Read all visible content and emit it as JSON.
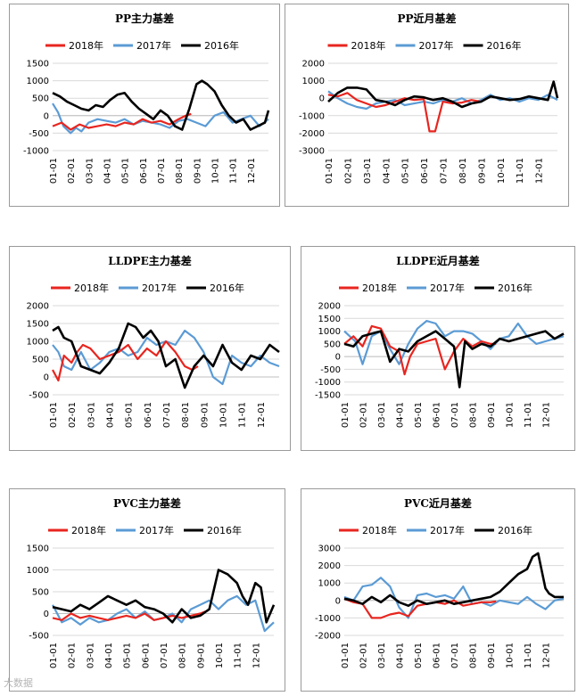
{
  "watermark": "大数据",
  "legend_years": [
    "2018年",
    "2017年",
    "2016年"
  ],
  "colors": {
    "2018": "#e8251f",
    "2017": "#5b9bd5",
    "2016": "#000000"
  },
  "x_categories": [
    "01-01",
    "02-01",
    "03-01",
    "04-01",
    "05-01",
    "06-01",
    "07-01",
    "08-01",
    "09-01",
    "10-01",
    "11-01",
    "12-01"
  ],
  "chart_data": [
    {
      "type": "line",
      "title": "PP主力基差",
      "ylim": [
        -1000,
        1500
      ],
      "yticks": [
        -1000,
        -500,
        0,
        500,
        1000,
        1500
      ],
      "categories": [
        "01-01",
        "02-01",
        "03-01",
        "04-01",
        "05-01",
        "06-01",
        "07-01",
        "08-01",
        "09-01",
        "10-01",
        "11-01",
        "12-01"
      ],
      "series": [
        {
          "name": "2018年",
          "x": [
            0,
            0.5,
            1,
            1.5,
            2,
            2.5,
            3,
            3.5,
            4,
            4.5,
            5,
            5.5,
            6,
            6.5,
            7,
            7.4,
            7.7
          ],
          "values": [
            -300,
            -200,
            -400,
            -250,
            -350,
            -300,
            -250,
            -300,
            -200,
            -250,
            -100,
            -200,
            -150,
            -250,
            -100,
            0,
            50
          ]
        },
        {
          "name": "2017年",
          "x": [
            0,
            0.3,
            0.6,
            1,
            1.3,
            1.6,
            2,
            2.5,
            3,
            3.5,
            4,
            4.5,
            5,
            5.5,
            6,
            6.5,
            7,
            7.5,
            8,
            8.5,
            9,
            9.5,
            10,
            10.5,
            11,
            11.5,
            12
          ],
          "values": [
            350,
            100,
            -300,
            -500,
            -350,
            -450,
            -200,
            -100,
            -150,
            -200,
            -100,
            -250,
            -150,
            -200,
            -250,
            -350,
            -150,
            -100,
            -200,
            -300,
            0,
            100,
            -200,
            -100,
            0,
            -300,
            -100
          ]
        },
        {
          "name": "2016年",
          "x": [
            0,
            0.4,
            0.8,
            1.2,
            1.6,
            2,
            2.4,
            2.8,
            3.2,
            3.6,
            4,
            4.4,
            4.8,
            5.2,
            5.6,
            6,
            6.4,
            6.8,
            7.2,
            7.6,
            8,
            8.3,
            8.6,
            9,
            9.4,
            9.8,
            10.2,
            10.6,
            11,
            11.4,
            11.8,
            12
          ],
          "values": [
            650,
            550,
            400,
            300,
            200,
            150,
            300,
            250,
            450,
            600,
            650,
            400,
            200,
            50,
            -100,
            150,
            0,
            -300,
            -400,
            200,
            900,
            1000,
            900,
            700,
            300,
            0,
            -200,
            -100,
            -400,
            -300,
            -200,
            150
          ]
        }
      ]
    },
    {
      "type": "line",
      "title": "PP近月基差",
      "ylim": [
        -3000,
        2000
      ],
      "yticks": [
        -3000,
        -2000,
        -1000,
        0,
        1000,
        2000
      ],
      "categories": [
        "01-01",
        "02-01",
        "03-01",
        "04-01",
        "05-01",
        "06-01",
        "07-01",
        "08-01",
        "09-01",
        "10-01",
        "11-01",
        "12-01"
      ],
      "series": [
        {
          "name": "2018年",
          "x": [
            0,
            0.5,
            1,
            1.5,
            2,
            2.5,
            3,
            3.5,
            4,
            4.5,
            5,
            5.3,
            5.6,
            6,
            6.5,
            7,
            7.5,
            8,
            8.3
          ],
          "values": [
            200,
            100,
            300,
            -100,
            -300,
            -500,
            -400,
            -200,
            0,
            -100,
            -50,
            -1900,
            -1900,
            -200,
            -300,
            -250,
            -100,
            -200,
            0
          ]
        },
        {
          "name": "2017年",
          "x": [
            0,
            0.5,
            1,
            1.5,
            2,
            2.5,
            3,
            3.5,
            4,
            4.5,
            5,
            5.5,
            6,
            6.5,
            7,
            7.5,
            8,
            8.5,
            9,
            9.5,
            10,
            10.5,
            11,
            11.5,
            12
          ],
          "values": [
            400,
            0,
            -300,
            -500,
            -600,
            -300,
            -200,
            -100,
            -400,
            -300,
            -200,
            -300,
            -100,
            -200,
            0,
            -300,
            -100,
            200,
            -100,
            0,
            -200,
            0,
            -100,
            200,
            -100
          ]
        },
        {
          "name": "2016年",
          "x": [
            0,
            0.5,
            1,
            1.5,
            2,
            2.5,
            3,
            3.5,
            4,
            4.5,
            5,
            5.5,
            6,
            6.5,
            7,
            7.5,
            8,
            8.5,
            9,
            9.5,
            10,
            10.5,
            11,
            11.5,
            11.8,
            12
          ],
          "values": [
            -200,
            300,
            600,
            600,
            500,
            -100,
            -200,
            -400,
            -100,
            100,
            50,
            -100,
            0,
            -200,
            -500,
            -300,
            -200,
            100,
            0,
            -100,
            -50,
            100,
            0,
            -100,
            950,
            0
          ]
        }
      ]
    },
    {
      "type": "line",
      "title": "LLDPE主力基差",
      "ylim": [
        -500,
        2000
      ],
      "yticks": [
        -500,
        0,
        500,
        1000,
        1500,
        2000
      ],
      "categories": [
        "01-01",
        "02-01",
        "03-01",
        "04-01",
        "05-01",
        "06-01",
        "07-01",
        "08-01",
        "09-01",
        "10-01",
        "11-01",
        "12-01"
      ],
      "series": [
        {
          "name": "2018年",
          "x": [
            0,
            0.3,
            0.6,
            1,
            1.3,
            1.6,
            2,
            2.5,
            3,
            3.5,
            4,
            4.5,
            5,
            5.5,
            6,
            6.5,
            7,
            7.4,
            7.7
          ],
          "values": [
            200,
            -100,
            600,
            400,
            700,
            900,
            800,
            500,
            600,
            700,
            900,
            500,
            800,
            600,
            1000,
            700,
            300,
            200,
            300
          ]
        },
        {
          "name": "2017年",
          "x": [
            0,
            0.3,
            0.6,
            1,
            1.5,
            2,
            2.5,
            3,
            3.5,
            4,
            4.5,
            5,
            5.5,
            6,
            6.5,
            7,
            7.5,
            8,
            8.5,
            9,
            9.5,
            10,
            10.5,
            11,
            11.5,
            12
          ],
          "values": [
            900,
            700,
            300,
            200,
            700,
            200,
            400,
            700,
            800,
            600,
            700,
            1100,
            900,
            1000,
            900,
            1300,
            1100,
            700,
            0,
            -200,
            600,
            400,
            300,
            600,
            400,
            300
          ]
        },
        {
          "name": "2016年",
          "x": [
            0,
            0.3,
            0.6,
            1,
            1.5,
            2,
            2.5,
            3,
            3.5,
            4,
            4.4,
            4.8,
            5.2,
            5.6,
            6,
            6.5,
            7,
            7.5,
            8,
            8.5,
            9,
            9.5,
            10,
            10.5,
            11,
            11.5,
            12
          ],
          "values": [
            1300,
            1400,
            1100,
            1000,
            300,
            200,
            100,
            400,
            800,
            1500,
            1400,
            1100,
            1300,
            1000,
            300,
            500,
            -300,
            300,
            600,
            300,
            900,
            400,
            200,
            600,
            500,
            900,
            700
          ]
        }
      ]
    },
    {
      "type": "line",
      "title": "LLDPE近月基差",
      "ylim": [
        -1500,
        2000
      ],
      "yticks": [
        -1500,
        -1000,
        -500,
        0,
        500,
        1000,
        1500,
        2000
      ],
      "categories": [
        "01-01",
        "02-01",
        "03-01",
        "04-01",
        "05-01",
        "06-01",
        "07-01",
        "08-01",
        "09-01",
        "10-01",
        "11-01",
        "12-01"
      ],
      "series": [
        {
          "name": "2018年",
          "x": [
            0,
            0.5,
            1,
            1.5,
            2,
            2.5,
            3,
            3.3,
            3.6,
            4,
            4.5,
            5,
            5.5,
            6,
            6.5,
            7,
            7.5,
            8,
            8.3
          ],
          "values": [
            500,
            800,
            400,
            1200,
            1100,
            400,
            200,
            -700,
            0,
            500,
            600,
            700,
            -500,
            200,
            700,
            400,
            600,
            500,
            500
          ]
        },
        {
          "name": "2017年",
          "x": [
            0,
            0.3,
            0.6,
            1,
            1.5,
            2,
            2.5,
            3,
            3.5,
            4,
            4.5,
            5,
            5.5,
            6,
            6.5,
            7,
            7.5,
            8,
            8.5,
            9,
            9.5,
            10,
            10.5,
            11,
            11.5,
            12
          ],
          "values": [
            1000,
            800,
            600,
            -300,
            800,
            1000,
            300,
            -300,
            500,
            1100,
            1400,
            1300,
            800,
            1000,
            1000,
            900,
            600,
            300,
            700,
            800,
            1300,
            800,
            500,
            600,
            700,
            800
          ]
        },
        {
          "name": "2016年",
          "x": [
            0,
            0.5,
            1,
            1.5,
            2,
            2.5,
            3,
            3.5,
            4,
            4.5,
            5,
            5.5,
            6,
            6.3,
            6.6,
            7,
            7.5,
            8,
            8.5,
            9,
            9.5,
            10,
            10.5,
            11,
            11.5,
            12
          ],
          "values": [
            500,
            400,
            800,
            900,
            1000,
            -200,
            300,
            200,
            600,
            800,
            1000,
            700,
            400,
            -1200,
            600,
            300,
            500,
            400,
            700,
            600,
            700,
            800,
            900,
            1000,
            700,
            900
          ]
        }
      ]
    },
    {
      "type": "line",
      "title": "PVC主力基差",
      "ylim": [
        -500,
        1500
      ],
      "yticks": [
        -500,
        0,
        500,
        1000,
        1500
      ],
      "categories": [
        "01-01",
        "02-01",
        "03-01",
        "04-01",
        "05-01",
        "06-01",
        "07-01",
        "08-01",
        "09-01",
        "10-01",
        "11-01",
        "12-01"
      ],
      "series": [
        {
          "name": "2018年",
          "x": [
            0,
            0.5,
            1,
            1.5,
            2,
            2.5,
            3,
            3.5,
            4,
            4.5,
            5,
            5.5,
            6,
            6.5,
            7,
            7.5,
            8,
            8.3
          ],
          "values": [
            -100,
            -150,
            0,
            -100,
            -50,
            -100,
            -150,
            -100,
            -50,
            -100,
            0,
            -150,
            -100,
            -50,
            -100,
            -50,
            0,
            50
          ]
        },
        {
          "name": "2017年",
          "x": [
            0,
            0.5,
            1,
            1.5,
            2,
            2.5,
            3,
            3.5,
            4,
            4.5,
            5,
            5.5,
            6,
            6.5,
            7,
            7.5,
            8,
            8.5,
            9,
            9.5,
            10,
            10.5,
            11,
            11.5,
            12
          ],
          "values": [
            200,
            -200,
            -100,
            -250,
            -100,
            -200,
            -150,
            0,
            100,
            -100,
            50,
            -150,
            -100,
            0,
            -200,
            100,
            200,
            300,
            100,
            300,
            400,
            200,
            300,
            -400,
            -200
          ]
        },
        {
          "name": "2016年",
          "x": [
            0,
            0.5,
            1,
            1.5,
            2,
            2.5,
            3,
            3.5,
            4,
            4.5,
            5,
            5.5,
            6,
            6.5,
            7,
            7.5,
            8,
            8.5,
            9,
            9.5,
            10,
            10.3,
            10.6,
            11,
            11.3,
            11.6,
            12
          ],
          "values": [
            150,
            100,
            50,
            200,
            100,
            250,
            400,
            300,
            200,
            300,
            150,
            100,
            0,
            -200,
            100,
            -100,
            -50,
            100,
            1000,
            900,
            700,
            400,
            200,
            700,
            600,
            -200,
            200
          ]
        }
      ]
    },
    {
      "type": "line",
      "title": "PVC近月基差",
      "ylim": [
        -2000,
        3000
      ],
      "yticks": [
        -2000,
        -1000,
        0,
        1000,
        2000,
        3000
      ],
      "categories": [
        "01-01",
        "02-01",
        "03-01",
        "04-01",
        "05-01",
        "06-01",
        "07-01",
        "08-01",
        "09-01",
        "10-01",
        "11-01",
        "12-01"
      ],
      "series": [
        {
          "name": "2018年",
          "x": [
            0,
            0.5,
            1,
            1.5,
            2,
            2.5,
            3,
            3.5,
            4,
            4.5,
            5,
            5.5,
            6,
            6.5,
            7,
            7.5,
            8,
            8.3
          ],
          "values": [
            100,
            -100,
            -200,
            -1000,
            -1000,
            -800,
            -700,
            -900,
            -300,
            -200,
            -100,
            -200,
            0,
            -300,
            -200,
            -100,
            -100,
            -50
          ]
        },
        {
          "name": "2017年",
          "x": [
            0,
            0.5,
            1,
            1.5,
            2,
            2.5,
            3,
            3.5,
            4,
            4.5,
            5,
            5.5,
            6,
            6.5,
            7,
            7.5,
            8,
            8.5,
            9,
            9.5,
            10,
            10.5,
            11,
            11.5,
            12
          ],
          "values": [
            200,
            0,
            800,
            900,
            1300,
            800,
            -400,
            -1000,
            300,
            400,
            200,
            300,
            100,
            800,
            -200,
            -100,
            -300,
            0,
            -100,
            -200,
            200,
            -200,
            -500,
            0,
            100
          ]
        },
        {
          "name": "2016年",
          "x": [
            0,
            0.5,
            1,
            1.5,
            2,
            2.5,
            3,
            3.5,
            4,
            4.5,
            5,
            5.5,
            6,
            6.5,
            7,
            7.5,
            8,
            8.5,
            9,
            9.5,
            10,
            10.3,
            10.6,
            11,
            11.2,
            11.5,
            12
          ],
          "values": [
            100,
            0,
            -200,
            200,
            -100,
            300,
            -100,
            -300,
            0,
            -200,
            -100,
            0,
            -200,
            -100,
            0,
            100,
            200,
            500,
            1000,
            1500,
            1800,
            2500,
            2700,
            700,
            400,
            200,
            200
          ]
        }
      ]
    }
  ]
}
